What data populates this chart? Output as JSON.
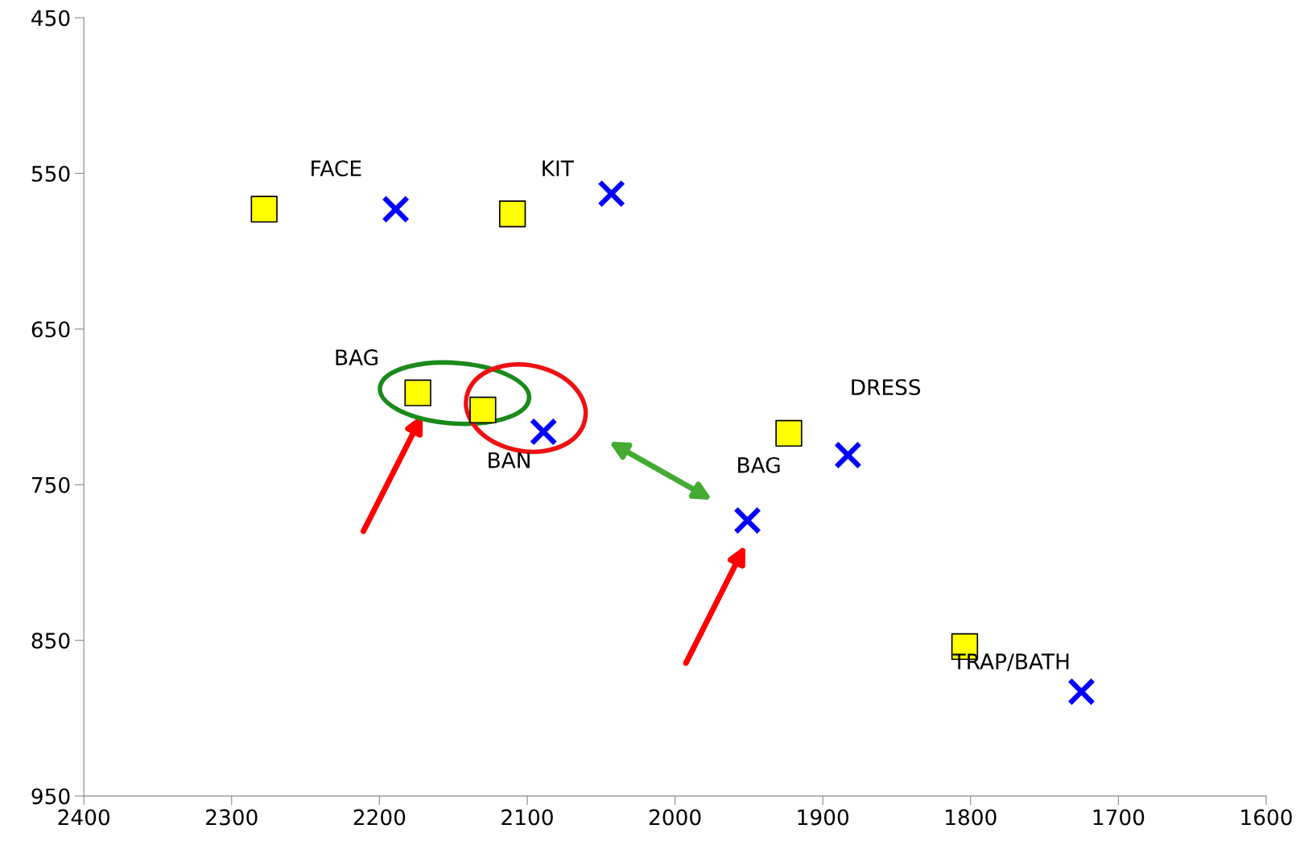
{
  "chart_data": {
    "type": "scatter",
    "xlim": [
      2400,
      1600
    ],
    "ylim": [
      950,
      450
    ],
    "xticks": [
      2400,
      2300,
      2200,
      2100,
      2000,
      1900,
      1800,
      1700,
      1600
    ],
    "yticks": [
      450,
      550,
      650,
      750,
      850,
      950
    ],
    "grid": false,
    "legend": false,
    "series": [
      {
        "color": "#ffff00",
        "marker": "square",
        "x": [
          2278,
          2110,
          2174,
          2130,
          1923,
          1804
        ],
        "values": [
          573,
          576,
          691,
          702,
          717,
          854
        ]
      },
      {
        "color": "#0000ff",
        "marker": "cross",
        "x": [
          2189,
          2043,
          2089,
          1951,
          1883,
          1725
        ],
        "values": [
          573,
          563,
          716,
          773,
          731,
          883
        ]
      }
    ],
    "annotations": [
      "FACE",
      "KIT",
      "BAG",
      "BAN",
      "BAG",
      "DRESS",
      "TRAP/BATH"
    ]
  }
}
